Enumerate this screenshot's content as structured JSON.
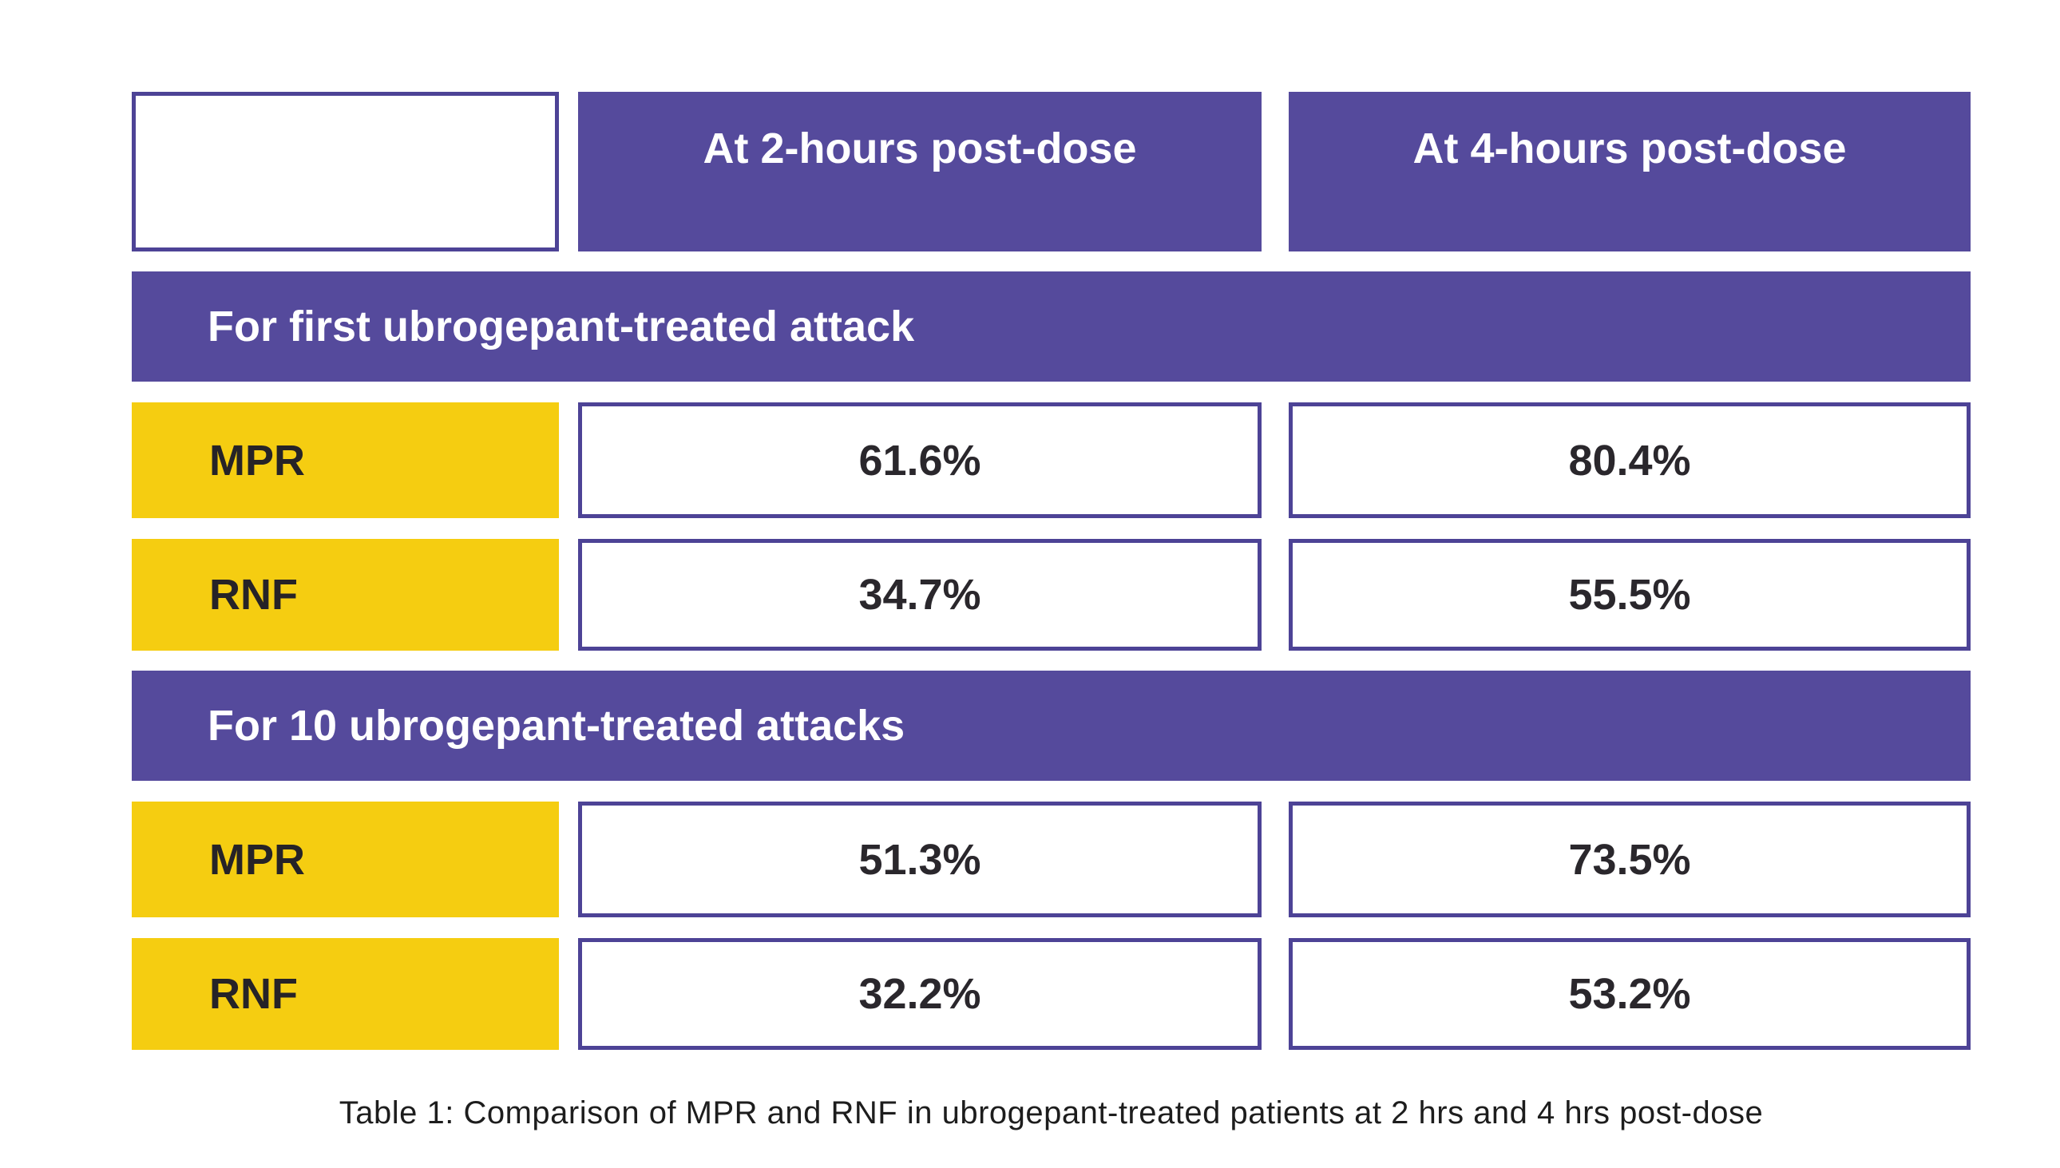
{
  "table": {
    "column_headers": [
      "At 2-hours post-dose",
      "At 4-hours post-dose"
    ],
    "sections": [
      {
        "header": "For first ubrogepant-treated attack",
        "rows": [
          {
            "label": "MPR",
            "values": [
              "61.6%",
              "80.4%"
            ]
          },
          {
            "label": "RNF",
            "values": [
              "34.7%",
              "55.5%"
            ]
          }
        ]
      },
      {
        "header": "For 10 ubrogepant-treated attacks",
        "rows": [
          {
            "label": "MPR",
            "values": [
              "51.3%",
              "73.5%"
            ]
          },
          {
            "label": "RNF",
            "values": [
              "32.2%",
              "53.2%"
            ]
          }
        ]
      }
    ],
    "caption": "Table 1: Comparison of MPR and RNF in ubrogepant-treated patients at 2 hrs and 4 hrs post-dose"
  },
  "colors": {
    "purple_fill": "#554a9c",
    "purple_border": "#4d4396",
    "yellow_fill": "#f5cd11",
    "dark_text": "#262327",
    "white": "#ffffff"
  },
  "chart_data": {
    "type": "table",
    "title": "Table 1: Comparison of MPR and RNF in ubrogepant-treated patients at 2 hrs and 4 hrs post-dose",
    "columns": [
      "",
      "At 2-hours post-dose",
      "At 4-hours post-dose"
    ],
    "units": "%",
    "sections": [
      {
        "header": "For first ubrogepant-treated attack",
        "rows": [
          {
            "label": "MPR",
            "at_2h": 61.6,
            "at_4h": 80.4
          },
          {
            "label": "RNF",
            "at_2h": 34.7,
            "at_4h": 55.5
          }
        ]
      },
      {
        "header": "For 10 ubrogepant-treated attacks",
        "rows": [
          {
            "label": "MPR",
            "at_2h": 51.3,
            "at_4h": 73.5
          },
          {
            "label": "RNF",
            "at_2h": 32.2,
            "at_4h": 53.2
          }
        ]
      }
    ]
  }
}
